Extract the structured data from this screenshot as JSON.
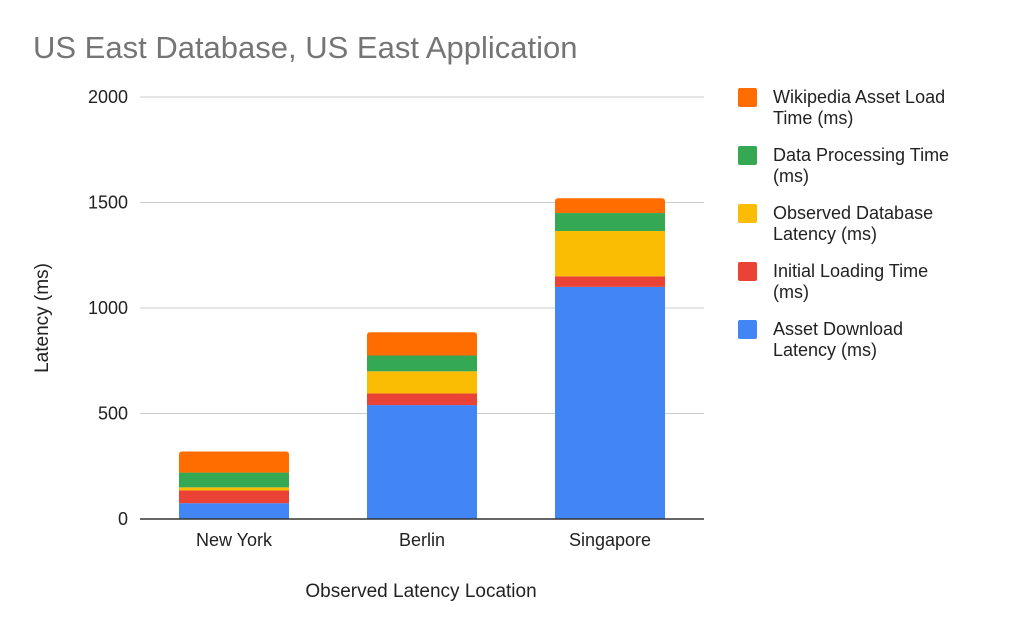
{
  "chart_data": {
    "type": "bar",
    "stacked": true,
    "title": "US East Database, US East Application",
    "xlabel": "Observed Latency Location",
    "ylabel": "Latency (ms)",
    "ylim": [
      0,
      2000
    ],
    "yticks": [
      0,
      500,
      1000,
      1500,
      2000
    ],
    "grid": true,
    "legend_position": "right",
    "categories": [
      "New York",
      "Berlin",
      "Singapore"
    ],
    "series": [
      {
        "name": "Asset Download Latency (ms)",
        "color": "#4285F4",
        "values": [
          75,
          540,
          1100
        ]
      },
      {
        "name": "Initial Loading Time (ms)",
        "color": "#EA4335",
        "values": [
          60,
          55,
          50
        ]
      },
      {
        "name": "Observed Database Latency (ms)",
        "color": "#FBBC04",
        "values": [
          15,
          105,
          215
        ]
      },
      {
        "name": "Data Processing Time (ms)",
        "color": "#34A853",
        "values": [
          70,
          75,
          85
        ]
      },
      {
        "name": "Wikipedia Asset Load Time (ms)",
        "color": "#FF6D01",
        "values": [
          100,
          110,
          70
        ]
      }
    ],
    "legend_order": [
      {
        "label_lines": [
          "Wikipedia Asset Load",
          "Time (ms)"
        ],
        "series_index": 4
      },
      {
        "label_lines": [
          "Data Processing Time",
          "(ms)"
        ],
        "series_index": 3
      },
      {
        "label_lines": [
          "Observed Database",
          "Latency (ms)"
        ],
        "series_index": 2
      },
      {
        "label_lines": [
          "Initial Loading Time",
          "(ms)"
        ],
        "series_index": 1
      },
      {
        "label_lines": [
          "Asset Download",
          "Latency (ms)"
        ],
        "series_index": 0
      }
    ]
  }
}
